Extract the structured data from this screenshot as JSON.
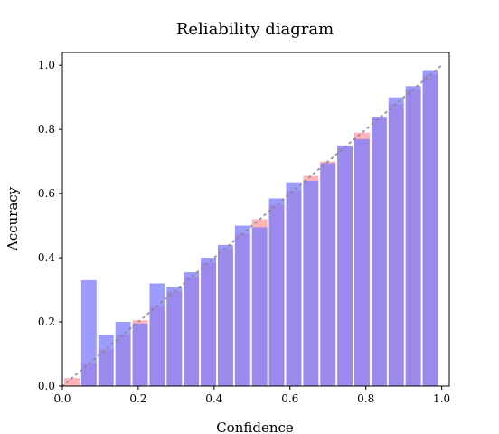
{
  "chart_data": {
    "type": "bar",
    "title": "Reliability diagram",
    "xlabel": "Confidence",
    "ylabel": "Accuracy",
    "xlim": [
      0.0,
      1.02
    ],
    "ylim": [
      0.0,
      1.04
    ],
    "xticks": [
      "0.0",
      "0.2",
      "0.4",
      "0.6",
      "0.8",
      "1.0"
    ],
    "yticks": [
      "0.0",
      "0.2",
      "0.4",
      "0.6",
      "0.8",
      "1.0"
    ],
    "bin_width": 0.045,
    "grid": false,
    "legend": "none",
    "diagonal": true,
    "x": [
      0.025,
      0.07,
      0.115,
      0.16,
      0.205,
      0.25,
      0.295,
      0.34,
      0.385,
      0.43,
      0.475,
      0.52,
      0.565,
      0.61,
      0.655,
      0.7,
      0.745,
      0.79,
      0.835,
      0.88,
      0.925,
      0.97
    ],
    "series": [
      {
        "color": "#ff9aa2",
        "values": [
          0.025,
          0.07,
          0.115,
          0.16,
          0.205,
          0.25,
          0.295,
          0.34,
          0.385,
          0.43,
          0.475,
          0.52,
          0.565,
          0.61,
          0.655,
          0.7,
          0.745,
          0.79,
          0.835,
          0.88,
          0.925,
          0.97
        ]
      },
      {
        "color": "#7b7bff",
        "values": [
          0.0,
          0.33,
          0.16,
          0.2,
          0.195,
          0.32,
          0.31,
          0.355,
          0.4,
          0.44,
          0.5,
          0.495,
          0.585,
          0.635,
          0.64,
          0.695,
          0.75,
          0.77,
          0.84,
          0.9,
          0.935,
          0.985
        ]
      }
    ]
  }
}
